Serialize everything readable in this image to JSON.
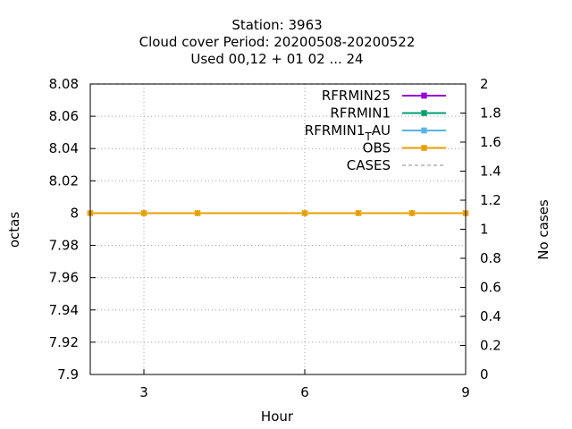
{
  "chart_data": {
    "type": "line",
    "title": [
      "Station:     3963",
      "Cloud cover   Period: 20200508-20200522",
      "Used  00,12  + 01 02 ... 24"
    ],
    "xlabel": "Hour",
    "ylabel": "octas",
    "y2label": "No cases",
    "xlim": [
      2,
      9
    ],
    "ylim": [
      7.9,
      8.08
    ],
    "y2lim": [
      0,
      2
    ],
    "xticks": [
      3,
      6,
      9
    ],
    "yticks": [
      7.9,
      7.92,
      7.94,
      7.96,
      7.98,
      8,
      8.02,
      8.04,
      8.06,
      8.08
    ],
    "ytick_labels": [
      "7.9",
      "7.92",
      "7.94",
      "7.96",
      "7.98",
      "8",
      "8.02",
      "8.04",
      "8.06",
      "8.08"
    ],
    "y2ticks": [
      0,
      0.2,
      0.4,
      0.6,
      0.8,
      1,
      1.2,
      1.4,
      1.6,
      1.8,
      2
    ],
    "y2tick_labels": [
      "0",
      "0.2",
      "0.4",
      "0.6",
      "0.8",
      "1",
      "1.2",
      "1.4",
      "1.6",
      "1.8",
      "2"
    ],
    "grid": true,
    "legend_position": "top-right",
    "series": [
      {
        "name": "RFRMIN25",
        "color": "#9400d3",
        "axis": "y",
        "marker": true,
        "x": [],
        "y": []
      },
      {
        "name": "RFRMIN1",
        "color": "#009e73",
        "axis": "y",
        "marker": true,
        "x": [],
        "y": []
      },
      {
        "name": "RFRMIN1_TAU",
        "legend_main": "RFRMIN1",
        "legend_sub": "T",
        "legend_tail": "AU",
        "color": "#56b4e9",
        "axis": "y",
        "marker": true,
        "x": [],
        "y": []
      },
      {
        "name": "OBS",
        "color": "#e69f00",
        "axis": "y",
        "marker": true,
        "x": [
          2,
          3,
          4,
          6,
          7,
          8,
          9
        ],
        "y": [
          8,
          8,
          8,
          8,
          8,
          8,
          8
        ]
      },
      {
        "name": "CASES",
        "color": "#a0a0a0",
        "axis": "y2",
        "dashed": true,
        "marker": false,
        "x": [
          2,
          3,
          4,
          6,
          7,
          8,
          9
        ],
        "y": [
          2,
          2,
          2,
          2,
          2,
          2,
          2
        ]
      }
    ]
  }
}
